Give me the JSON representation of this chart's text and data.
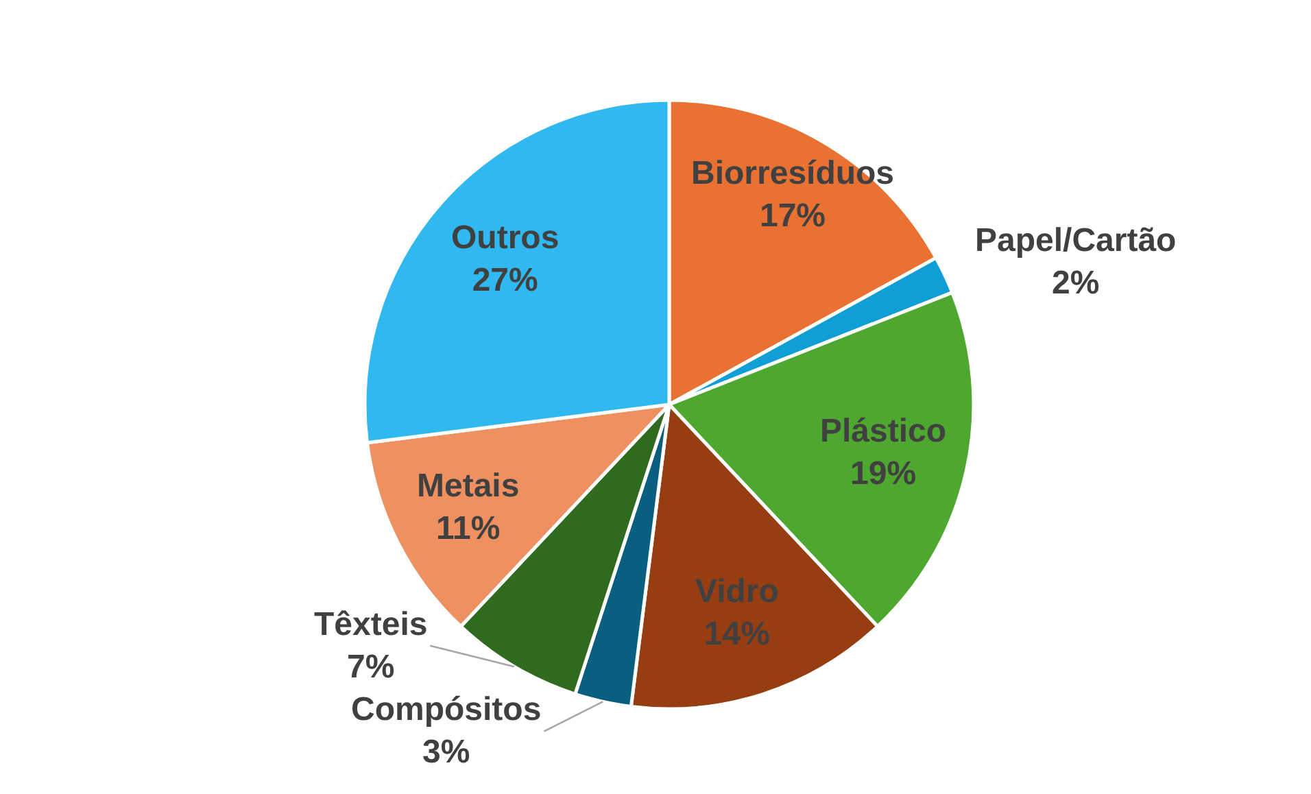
{
  "chart_data": {
    "type": "pie",
    "categories": [
      "Biorresíduos",
      "Papel/Cartão",
      "Plástico",
      "Vidro",
      "Compósitos",
      "Têxteis",
      "Metais",
      "Outros"
    ],
    "values": [
      17,
      2,
      19,
      14,
      3,
      7,
      11,
      27
    ],
    "value_labels": [
      "17%",
      "2%",
      "19%",
      "14%",
      "3%",
      "7%",
      "11%",
      "27%"
    ],
    "colors": [
      "#e97132",
      "#0f9ed5",
      "#4ea72e",
      "#963d12",
      "#0a5f80",
      "#2f6a1e",
      "#ee9060",
      "#2fb9f0"
    ],
    "legend": false
  }
}
